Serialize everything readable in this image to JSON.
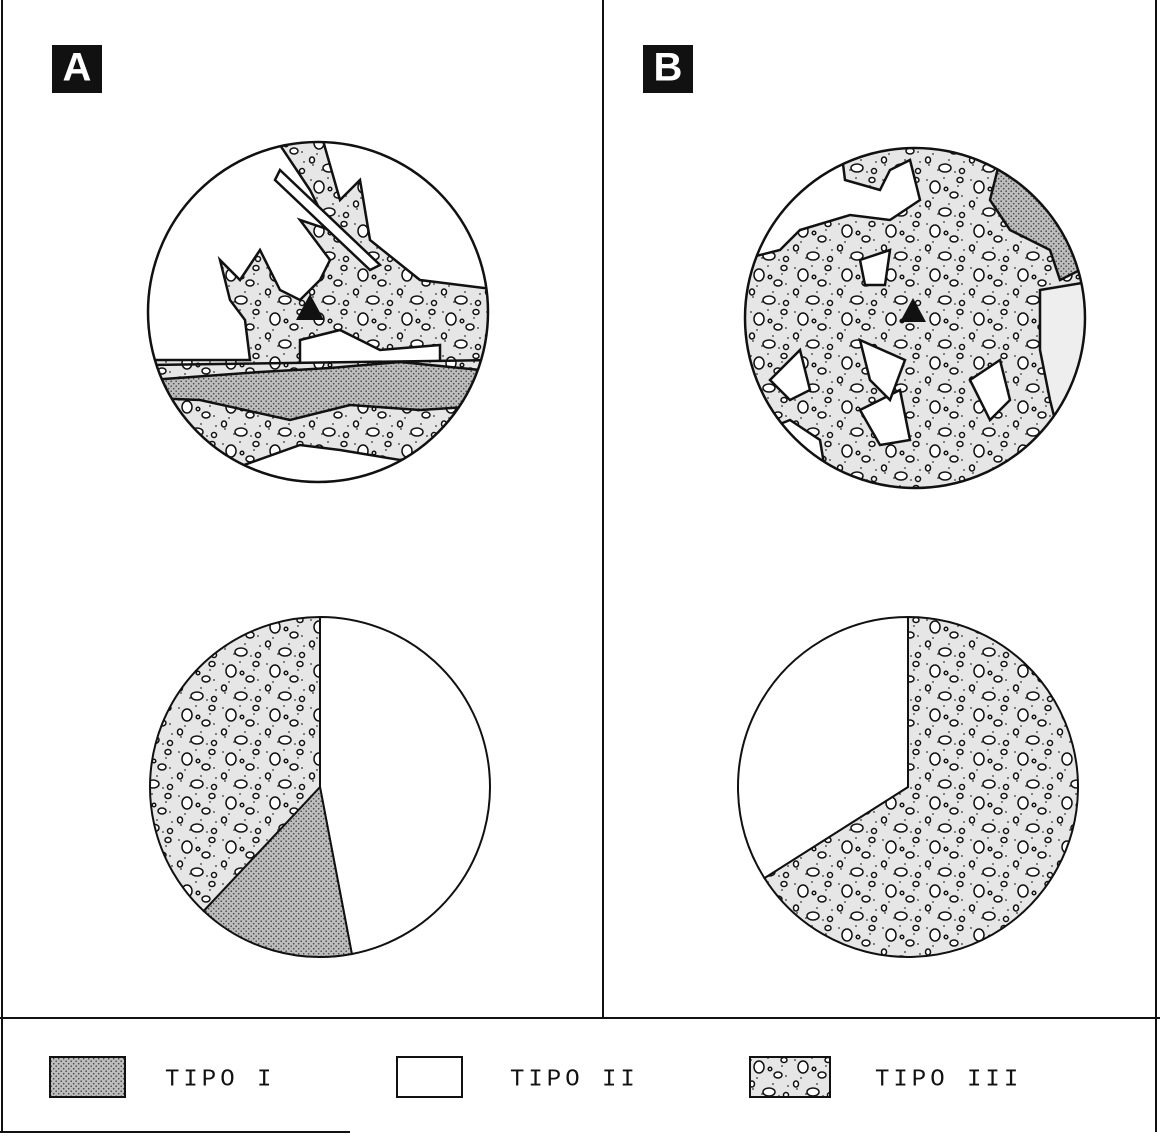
{
  "panel_labels": [
    "A",
    "B"
  ],
  "legend": {
    "labels": [
      "TIPO I",
      "TIPO II",
      "TIPO III"
    ],
    "colors": [
      "#bdbdbd",
      "#ffffff",
      "#e6e6e6"
    ]
  },
  "chart_data": [
    {
      "type": "pie",
      "categories": [
        "TIPO II",
        "TIPO I",
        "TIPO III"
      ],
      "values": [
        47,
        15,
        38
      ]
    },
    {
      "type": "pie",
      "categories": [
        "TIPO III",
        "TIPO II"
      ],
      "values": [
        66,
        34
      ]
    }
  ]
}
